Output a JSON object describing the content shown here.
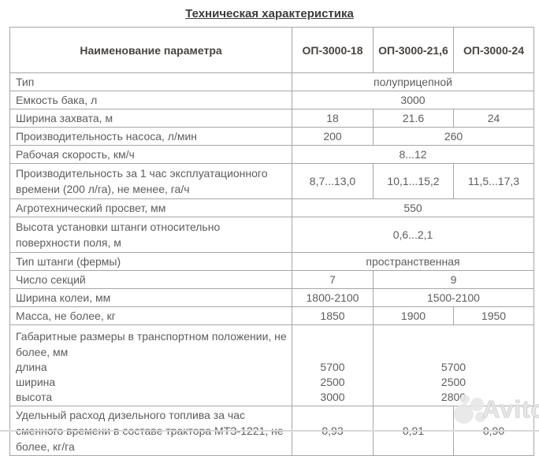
{
  "page": {
    "title": "Техническая характеристика"
  },
  "watermark": {
    "brand": "Avito"
  },
  "table": {
    "header": {
      "param": "Наименование параметра",
      "model1": "ОП-3000-18",
      "model2": "ОП-3000-21,6",
      "model3": "ОП-3000-24"
    },
    "rows": {
      "type": {
        "param": "Тип",
        "value": "полуприцепной"
      },
      "tank": {
        "param": "Емкость бака, л",
        "value": "3000"
      },
      "swath": {
        "param": "Ширина захвата, м",
        "v1": "18",
        "v2": "21.6",
        "v3": "24"
      },
      "pump": {
        "param": "Производительность насоса, л/мин",
        "v1": "200",
        "v23": "260"
      },
      "speed": {
        "param": "Рабочая скорость, км/ч",
        "value": "8...12"
      },
      "hourly": {
        "param": "Производительность за 1 час эксплуатационного времени (200 л/га), не менее, га/ч",
        "v1": "8,7...13,0",
        "v2": "10,1...15,2",
        "v3": "11,5...17,3"
      },
      "clearance": {
        "param": "Агротехнический просвет, мм",
        "value": "550"
      },
      "boom_height": {
        "param": "Высота установки штанги относительно поверхности поля,  м",
        "value": "0,6...2,1"
      },
      "boom_type": {
        "param": "Тип штанги (фермы)",
        "value": "пространственная"
      },
      "sections": {
        "param": "Число секций",
        "v1": "7",
        "v23": "9"
      },
      "track": {
        "param": "Ширина колеи, мм",
        "v1": "1800-2100",
        "v23": "1500-2100"
      },
      "mass": {
        "param": "Масса, не более, кг",
        "v1": "1850",
        "v2": "1900",
        "v3": "1950"
      },
      "dims": {
        "param": "Габаритные размеры в транспортном положении,  не более, мм",
        "length": {
          "label": "длина",
          "v1": "5700",
          "v23": "5700"
        },
        "width": {
          "label": "ширина",
          "v1": "2500",
          "v23": "2500"
        },
        "height": {
          "label": "высота",
          "v1": "3000",
          "v23": "2800"
        }
      },
      "fuel": {
        "param": "Удельный расход дизельного топлива за час сменного времени в составе трактора МТЗ-1221, не более, кг/га",
        "v1": "0,93",
        "v2": "0,91",
        "v3": "0,90"
      }
    }
  }
}
